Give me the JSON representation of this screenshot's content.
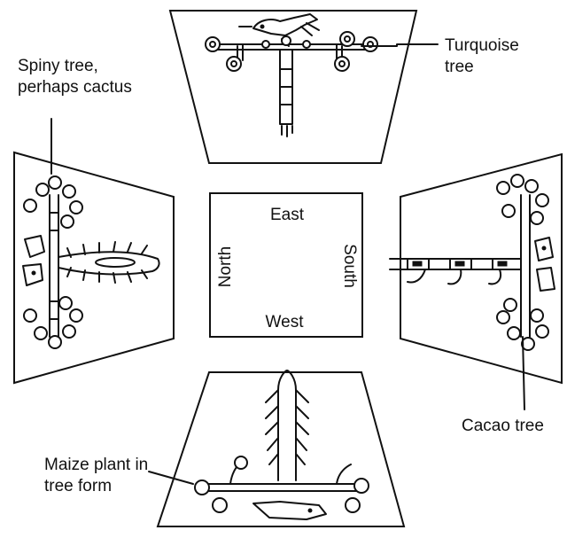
{
  "center": {
    "east": "East",
    "west": "West",
    "north": "North",
    "south": "South"
  },
  "labels": {
    "spiny_line1": "Spiny tree,",
    "spiny_line2": "perhaps cactus",
    "turquoise_line1": "Turquoise",
    "turquoise_line2": "tree",
    "cacao": "Cacao tree",
    "maize_line1": "Maize plant in",
    "maize_line2": "tree form"
  }
}
